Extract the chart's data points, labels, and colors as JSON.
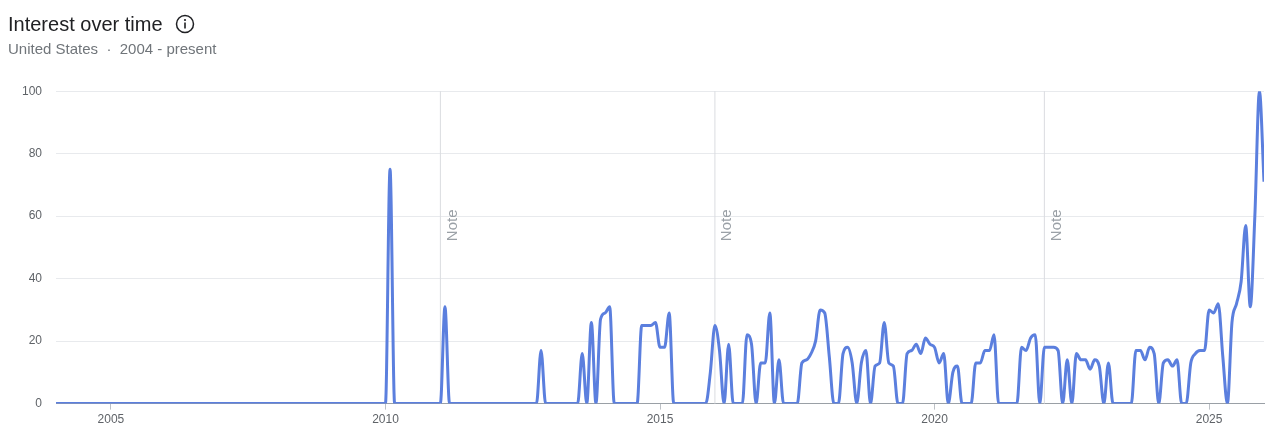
{
  "chart_data": {
    "type": "line",
    "title": "Interest over time",
    "subtitle": "United States  ·  2004 - present",
    "xlim": [
      "2004-01",
      "2026-01"
    ],
    "xticks": [
      "2005",
      "2010",
      "2015",
      "2020",
      "2025"
    ],
    "ylim": [
      0,
      100
    ],
    "yticks": [
      0,
      20,
      40,
      60,
      80,
      100
    ],
    "grid": "y",
    "legend": false,
    "marker": "none",
    "line_style": "solid",
    "ref_lines": [
      {
        "axis": "x",
        "value": "2011-01",
        "label": "Note",
        "color": "#dadce0"
      },
      {
        "axis": "x",
        "value": "2016-01",
        "label": "Note",
        "color": "#dadce0"
      },
      {
        "axis": "x",
        "value": "2022-01",
        "label": "Note",
        "color": "#dadce0"
      }
    ],
    "series": [
      {
        "color": "#5b7fde",
        "x": [
          "2004-01",
          "2010-01",
          "2010-02",
          "2010-03",
          "2011-01",
          "2011-02",
          "2011-03",
          "2012-10",
          "2012-11",
          "2012-12",
          "2013-07",
          "2013-08",
          "2013-09",
          "2013-10",
          "2013-11",
          "2013-12",
          "2014-01",
          "2014-02",
          "2014-03",
          "2014-08",
          "2014-09",
          "2014-10",
          "2014-11",
          "2014-12",
          "2015-01",
          "2015-02",
          "2015-03",
          "2015-04",
          "2015-11",
          "2015-12",
          "2016-01",
          "2016-02",
          "2016-03",
          "2016-04",
          "2016-05",
          "2016-07",
          "2016-08",
          "2016-09",
          "2016-10",
          "2016-11",
          "2016-12",
          "2017-01",
          "2017-02",
          "2017-03",
          "2017-04",
          "2017-07",
          "2017-08",
          "2017-09",
          "2017-10",
          "2017-11",
          "2017-12",
          "2018-01",
          "2018-02",
          "2018-03",
          "2018-04",
          "2018-05",
          "2018-06",
          "2018-07",
          "2018-08",
          "2018-09",
          "2018-10",
          "2018-11",
          "2018-12",
          "2019-01",
          "2019-02",
          "2019-03",
          "2019-04",
          "2019-05",
          "2019-06",
          "2019-07",
          "2019-08",
          "2019-09",
          "2019-10",
          "2019-11",
          "2019-12",
          "2020-01",
          "2020-02",
          "2020-03",
          "2020-04",
          "2020-05",
          "2020-06",
          "2020-07",
          "2020-09",
          "2020-10",
          "2020-11",
          "2020-12",
          "2021-01",
          "2021-02",
          "2021-03",
          "2021-07",
          "2021-08",
          "2021-09",
          "2021-10",
          "2021-11",
          "2021-12",
          "2022-01",
          "2022-02",
          "2022-03",
          "2022-04",
          "2022-05",
          "2022-06",
          "2022-07",
          "2022-08",
          "2022-09",
          "2022-10",
          "2022-11",
          "2022-12",
          "2023-01",
          "2023-02",
          "2023-03",
          "2023-04",
          "2023-08",
          "2023-09",
          "2023-10",
          "2023-11",
          "2023-12",
          "2024-01",
          "2024-02",
          "2024-03",
          "2024-04",
          "2024-05",
          "2024-06",
          "2024-07",
          "2024-08",
          "2024-09",
          "2024-10",
          "2024-11",
          "2024-12",
          "2025-01",
          "2025-02",
          "2025-03",
          "2025-04",
          "2025-05",
          "2025-06",
          "2025-07",
          "2025-08",
          "2025-09",
          "2025-10",
          "2025-11",
          "2025-12",
          "2026-01"
        ],
        "values": [
          0,
          0,
          75,
          0,
          0,
          31,
          0,
          0,
          17,
          0,
          0,
          16,
          0,
          26,
          0,
          27,
          29,
          31,
          0,
          0,
          25,
          25,
          25,
          26,
          18,
          18,
          29,
          0,
          0,
          10,
          25,
          17,
          0,
          19,
          0,
          0,
          22,
          19,
          0,
          13,
          13,
          29,
          0,
          14,
          0,
          0,
          13,
          14,
          16,
          20,
          30,
          29,
          15,
          0,
          0,
          16,
          18,
          13,
          0,
          13,
          17,
          0,
          12,
          13,
          26,
          13,
          12,
          0,
          0,
          16,
          17,
          19,
          16,
          21,
          19,
          18,
          13,
          16,
          0,
          10,
          12,
          0,
          0,
          13,
          13,
          17,
          17,
          22,
          0,
          0,
          18,
          17,
          21,
          22,
          0,
          18,
          18,
          18,
          17,
          0,
          14,
          0,
          16,
          14,
          14,
          11,
          14,
          12,
          0,
          13,
          0,
          0,
          17,
          17,
          14,
          18,
          16,
          0,
          13,
          14,
          12,
          14,
          0,
          0,
          13,
          16,
          17,
          17,
          30,
          29,
          32,
          15,
          0,
          26,
          32,
          39,
          57,
          31,
          60,
          100,
          71
        ]
      }
    ]
  }
}
